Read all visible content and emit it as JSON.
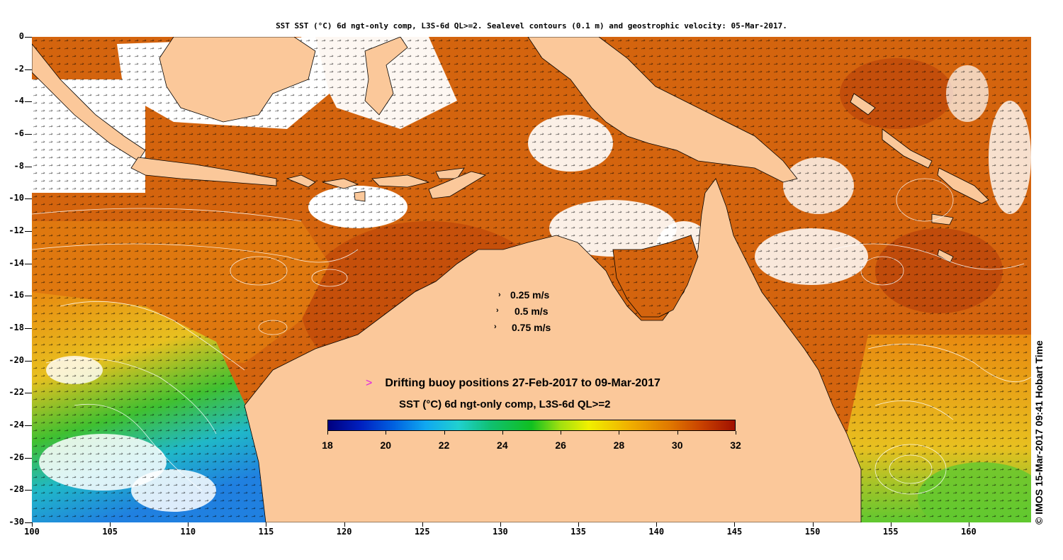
{
  "title": "SST SST (°C) 6d ngt-only comp, L3S-6d QL>=2. Sealevel contours (0.1 m) and geostrophic velocity: 05-Mar-2017.",
  "axes": {
    "lon_ticks": [
      "100",
      "105",
      "110",
      "115",
      "120",
      "125",
      "130",
      "135",
      "140",
      "145",
      "150",
      "155",
      "160"
    ],
    "lat_ticks": [
      "0",
      "-2",
      "-4",
      "-6",
      "-8",
      "-10",
      "-12",
      "-14",
      "-16",
      "-18",
      "-20",
      "-22",
      "-24",
      "-26",
      "-28",
      "-30"
    ]
  },
  "velocity_legend": [
    "0.25 m/s",
    "0.5 m/s",
    "0.75 m/s"
  ],
  "buoy_legend": "Drifting buoy positions 27-Feb-2017 to 09-Mar-2017",
  "colorbar": {
    "title": "SST (°C) 6d ngt-only comp, L3S-6d QL>=2",
    "ticks": [
      "18",
      "20",
      "22",
      "24",
      "26",
      "28",
      "30",
      "32"
    ],
    "range": [
      18,
      32
    ]
  },
  "stamp": "© IMOS 15-Mar-2017 09:41 Hobart Time",
  "colors": {
    "land": "#fbc89a",
    "ocean_warm": "#d4640e",
    "ocean_hot": "#b8400a",
    "ocean_mid": "#e88a10",
    "ocean_yellow": "#e8d020",
    "ocean_green": "#40c030",
    "ocean_cyan": "#20b8c8",
    "ocean_blue": "#2080e0",
    "cloud": "#ffffff",
    "buoy": "#e020e0"
  }
}
